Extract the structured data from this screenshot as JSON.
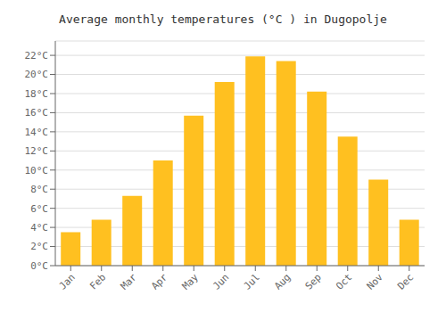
{
  "chart_data": {
    "type": "bar",
    "title": "Average monthly temperatures (°C ) in Dugopolje",
    "categories": [
      "Jan",
      "Feb",
      "Mar",
      "Apr",
      "May",
      "Jun",
      "Jul",
      "Aug",
      "Sep",
      "Oct",
      "Nov",
      "Dec"
    ],
    "values": [
      3.5,
      4.8,
      7.3,
      11.0,
      15.7,
      19.2,
      21.9,
      21.4,
      18.2,
      13.5,
      9.0,
      4.8
    ],
    "color": "#FFC020",
    "ylim": [
      0,
      23.5
    ],
    "yticks": [
      {
        "value": 0,
        "label": "0°C"
      },
      {
        "value": 2,
        "label": "2°C"
      },
      {
        "value": 4,
        "label": "4°C"
      },
      {
        "value": 6,
        "label": "6°C"
      },
      {
        "value": 8,
        "label": "8°C"
      },
      {
        "value": 10,
        "label": "10°C"
      },
      {
        "value": 12,
        "label": "12°C"
      },
      {
        "value": 14,
        "label": "14°C"
      },
      {
        "value": 16,
        "label": "16°C"
      },
      {
        "value": 18,
        "label": "18°C"
      },
      {
        "value": 20,
        "label": "20°C"
      },
      {
        "value": 22,
        "label": "22°C"
      }
    ],
    "grid": true
  }
}
